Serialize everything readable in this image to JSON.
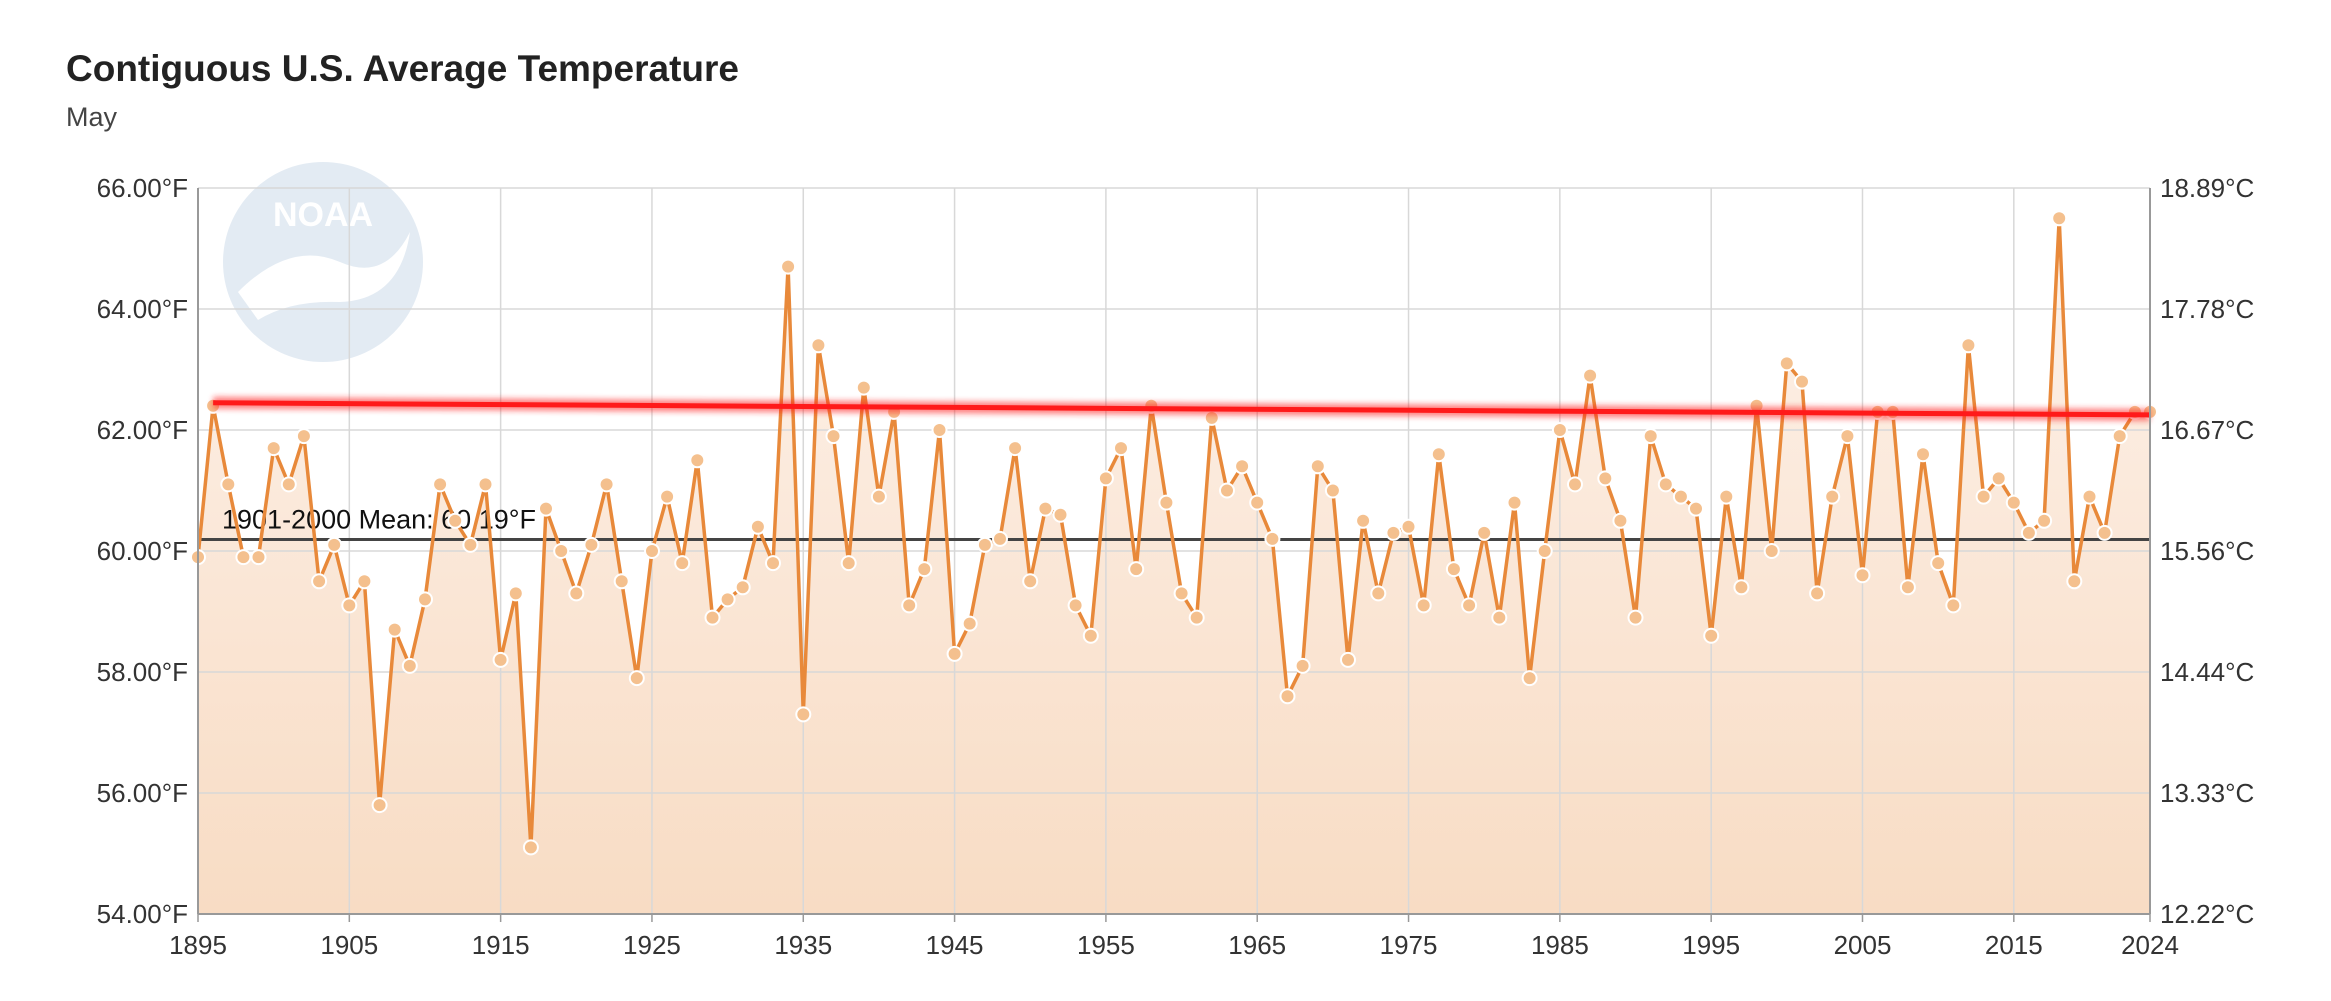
{
  "chart_data": {
    "type": "line",
    "title": "Contiguous U.S. Average Temperature",
    "subtitle": "May",
    "logo_text": "NOAA",
    "x_range": [
      1895,
      2024
    ],
    "xlim": [
      1895,
      2024
    ],
    "ylim_f": [
      54,
      66
    ],
    "ylim_c": [
      12.22,
      18.89
    ],
    "x_ticks": [
      "1895",
      "1905",
      "1915",
      "1925",
      "1935",
      "1945",
      "1955",
      "1965",
      "1975",
      "1985",
      "1995",
      "2005",
      "2015",
      "2024"
    ],
    "y_ticks_left": [
      "54.00°F",
      "56.00°F",
      "58.00°F",
      "60.00°F",
      "62.00°F",
      "64.00°F",
      "66.00°F"
    ],
    "y_ticks_right": [
      "12.22°C",
      "13.33°C",
      "14.44°C",
      "15.56°C",
      "16.67°C",
      "17.78°C",
      "18.89°C"
    ],
    "grid": true,
    "mean": {
      "label": "1901-2000 Mean: 60.19°F",
      "value": 60.19
    },
    "trend": {
      "start": [
        1896,
        62.45
      ],
      "end": [
        2024,
        62.25
      ]
    },
    "series": [
      {
        "years": [
          1895,
          1896,
          1897,
          1898,
          1899,
          1900,
          1901,
          1902,
          1903,
          1904,
          1905,
          1906,
          1907,
          1908,
          1909,
          1910,
          1911,
          1912,
          1913,
          1914,
          1915,
          1916,
          1917,
          1918,
          1919,
          1920,
          1921,
          1922,
          1923,
          1924,
          1925,
          1926,
          1927,
          1928,
          1929,
          1930,
          1931,
          1932,
          1933,
          1934,
          1935,
          1936,
          1937,
          1938,
          1939,
          1940,
          1941,
          1942,
          1943,
          1944,
          1945,
          1946,
          1947,
          1948,
          1949,
          1950,
          1951,
          1952,
          1953,
          1954,
          1955,
          1956,
          1957,
          1958,
          1959,
          1960,
          1961,
          1962,
          1963,
          1964,
          1965,
          1966,
          1967,
          1968,
          1969,
          1970,
          1971,
          1972,
          1973,
          1974,
          1975,
          1976,
          1977,
          1978,
          1979,
          1980,
          1981,
          1982,
          1983,
          1984,
          1985,
          1986,
          1987,
          1988,
          1989,
          1990,
          1991,
          1992,
          1993,
          1994,
          1995,
          1996,
          1997,
          1998,
          1999,
          2000,
          2001,
          2002,
          2003,
          2004,
          2005,
          2006,
          2007,
          2008,
          2009,
          2010,
          2011,
          2012,
          2013,
          2014,
          2015,
          2016,
          2017,
          2018,
          2019,
          2020,
          2021,
          2022,
          2023,
          2024
        ],
        "values": [
          59.9,
          62.4,
          61.1,
          59.9,
          59.9,
          61.7,
          61.1,
          61.9,
          59.5,
          60.1,
          59.1,
          59.5,
          55.8,
          58.7,
          58.1,
          59.2,
          61.1,
          60.5,
          60.1,
          61.1,
          58.2,
          59.3,
          55.1,
          60.7,
          60.0,
          59.3,
          60.1,
          61.1,
          59.5,
          57.9,
          60.0,
          60.9,
          59.8,
          61.5,
          58.9,
          59.2,
          59.4,
          60.4,
          59.8,
          64.7,
          57.3,
          63.4,
          61.9,
          59.8,
          62.7,
          60.9,
          62.3,
          59.1,
          59.7,
          62.0,
          58.3,
          58.8,
          60.1,
          60.2,
          61.7,
          59.5,
          60.7,
          60.6,
          59.1,
          58.6,
          61.2,
          61.7,
          59.7,
          62.4,
          60.8,
          59.3,
          58.9,
          62.2,
          61.0,
          61.4,
          60.8,
          60.2,
          57.6,
          58.1,
          61.4,
          61.0,
          58.2,
          60.5,
          59.3,
          60.3,
          60.4,
          59.1,
          61.6,
          59.7,
          59.1,
          60.3,
          58.9,
          60.8,
          57.9,
          60.0,
          62.0,
          61.1,
          62.9,
          61.2,
          60.5,
          58.9,
          61.9,
          61.1,
          60.9,
          60.7,
          58.6,
          60.9,
          59.4,
          62.4,
          60.0,
          63.1,
          62.8,
          59.3,
          60.9,
          61.9,
          59.6,
          62.3,
          62.3,
          59.4,
          61.6,
          59.8,
          59.1,
          63.4,
          60.9,
          61.2,
          60.8,
          60.3,
          60.5,
          65.5,
          59.5,
          60.9,
          60.3,
          61.9,
          62.3,
          62.3
        ]
      }
    ],
    "colors": {
      "series_line": "#e8893a",
      "marker_fill": "#f4c08e",
      "area_top": "#fdf2ea",
      "area_bottom": "#f8dcc4",
      "trend": "#ff1a1a",
      "mean_line": "#444444",
      "grid": "#d8d8d8",
      "logo": "#e3ebf3"
    }
  }
}
